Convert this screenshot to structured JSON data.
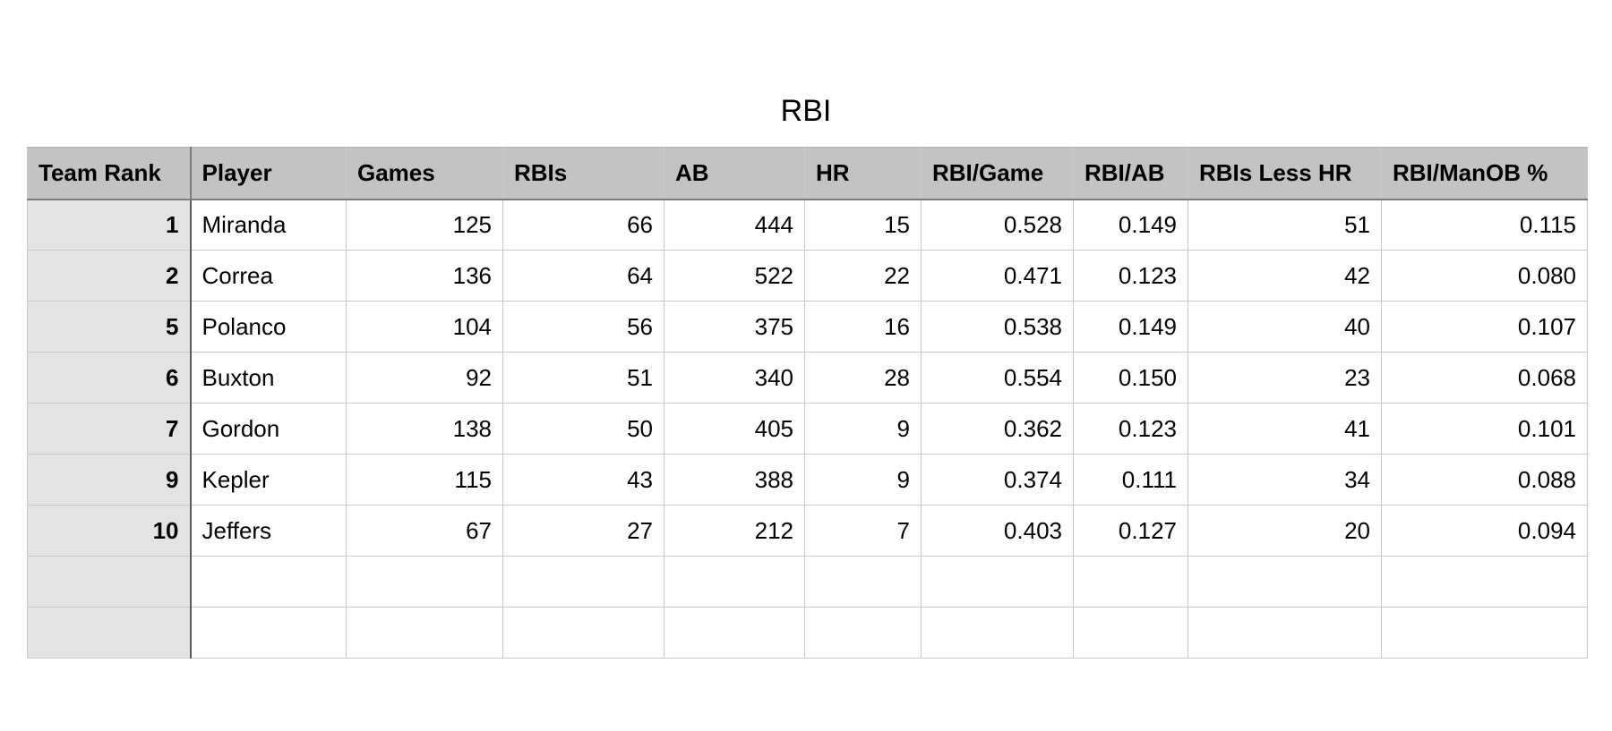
{
  "title": "RBI",
  "columns": [
    "Team Rank",
    "Player",
    "Games",
    "RBIs",
    "AB",
    "HR",
    "RBI/Game",
    "RBI/AB",
    "RBIs Less HR",
    "RBI/ManOB %"
  ],
  "rows": [
    {
      "rank": "1",
      "player": "Miranda",
      "games": "125",
      "rbis": "66",
      "ab": "444",
      "hr": "15",
      "rbi_game": "0.528",
      "rbi_ab": "0.149",
      "rbis_less_hr": "51",
      "rbi_manob": "0.115"
    },
    {
      "rank": "2",
      "player": "Correa",
      "games": "136",
      "rbis": "64",
      "ab": "522",
      "hr": "22",
      "rbi_game": "0.471",
      "rbi_ab": "0.123",
      "rbis_less_hr": "42",
      "rbi_manob": "0.080"
    },
    {
      "rank": "5",
      "player": "Polanco",
      "games": "104",
      "rbis": "56",
      "ab": "375",
      "hr": "16",
      "rbi_game": "0.538",
      "rbi_ab": "0.149",
      "rbis_less_hr": "40",
      "rbi_manob": "0.107"
    },
    {
      "rank": "6",
      "player": "Buxton",
      "games": "92",
      "rbis": "51",
      "ab": "340",
      "hr": "28",
      "rbi_game": "0.554",
      "rbi_ab": "0.150",
      "rbis_less_hr": "23",
      "rbi_manob": "0.068"
    },
    {
      "rank": "7",
      "player": "Gordon",
      "games": "138",
      "rbis": "50",
      "ab": "405",
      "hr": "9",
      "rbi_game": "0.362",
      "rbi_ab": "0.123",
      "rbis_less_hr": "41",
      "rbi_manob": "0.101"
    },
    {
      "rank": "9",
      "player": "Kepler",
      "games": "115",
      "rbis": "43",
      "ab": "388",
      "hr": "9",
      "rbi_game": "0.374",
      "rbi_ab": "0.111",
      "rbis_less_hr": "34",
      "rbi_manob": "0.088"
    },
    {
      "rank": "10",
      "player": "Jeffers",
      "games": "67",
      "rbis": "27",
      "ab": "212",
      "hr": "7",
      "rbi_game": "0.403",
      "rbi_ab": "0.127",
      "rbis_less_hr": "20",
      "rbi_manob": "0.094"
    },
    {
      "rank": "",
      "player": "",
      "games": "",
      "rbis": "",
      "ab": "",
      "hr": "",
      "rbi_game": "",
      "rbi_ab": "",
      "rbis_less_hr": "",
      "rbi_manob": ""
    },
    {
      "rank": "",
      "player": "",
      "games": "",
      "rbis": "",
      "ab": "",
      "hr": "",
      "rbi_game": "",
      "rbi_ab": "",
      "rbis_less_hr": "",
      "rbi_manob": ""
    }
  ],
  "colors": {
    "header_background": "#c3c3c3",
    "rank_column_background": "#e3e3e3",
    "gridline": "#c9c9c9"
  }
}
